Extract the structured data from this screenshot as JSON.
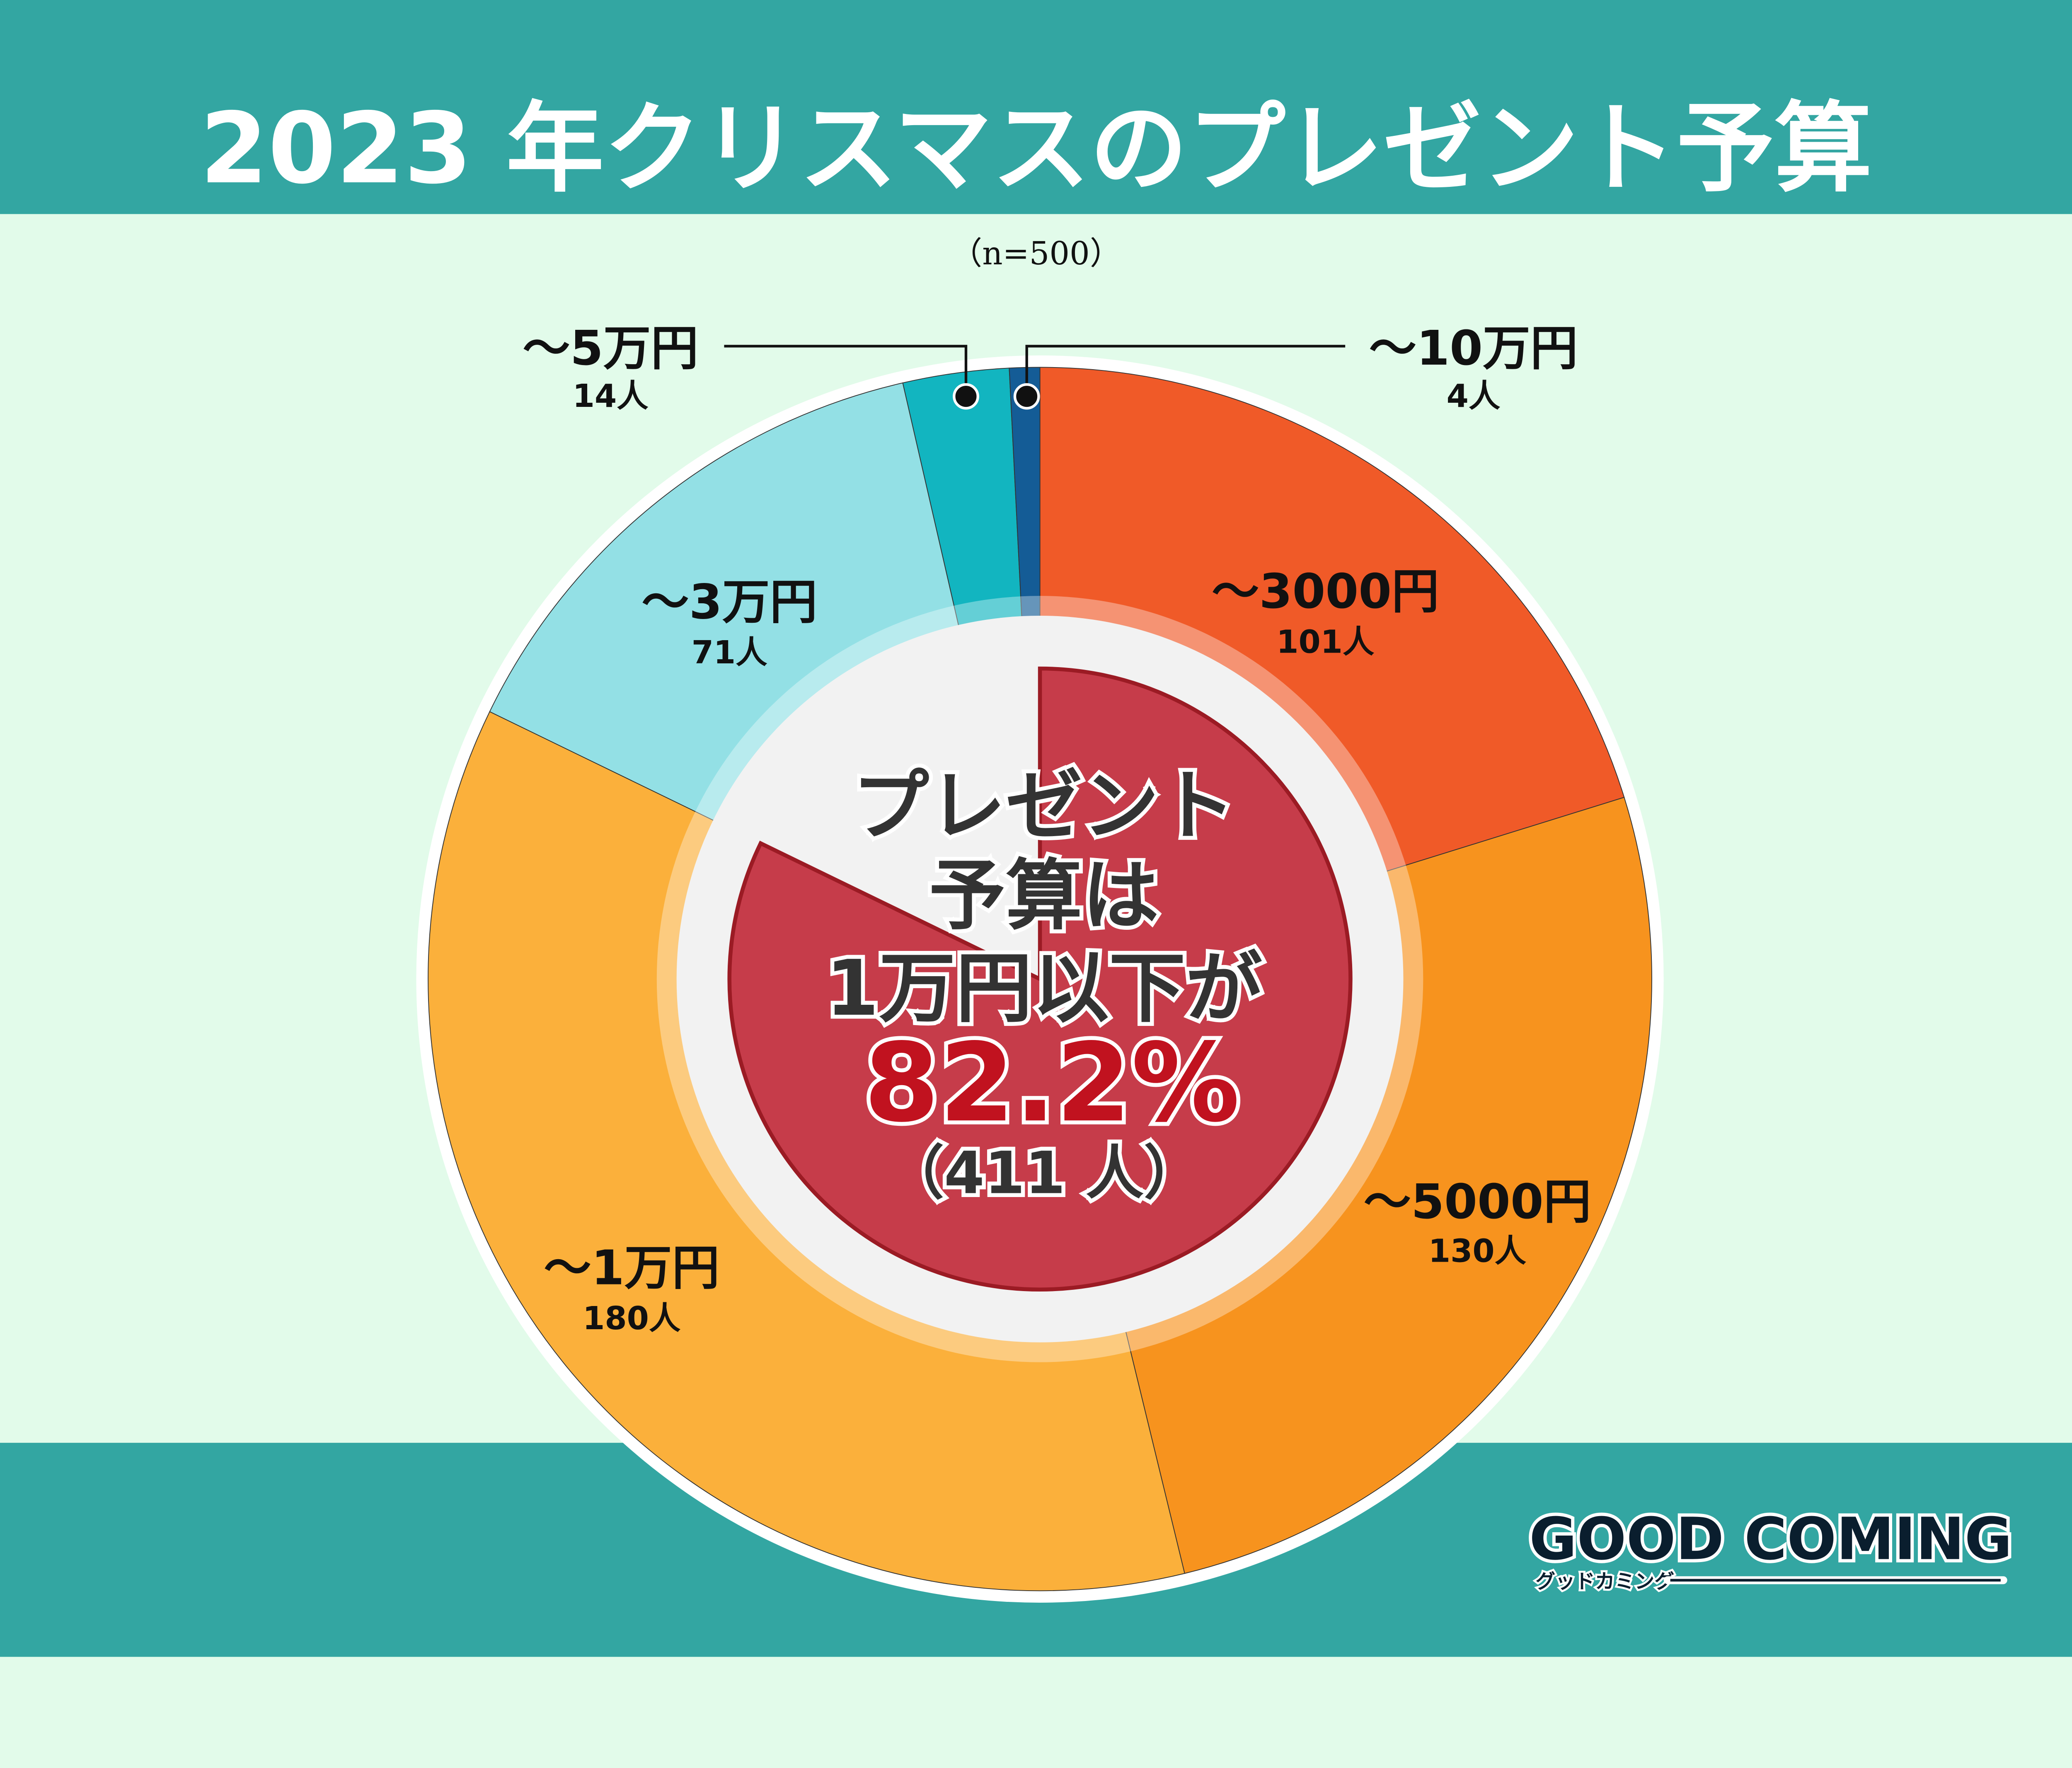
{
  "title": "2023 年クリスマスのプレゼント予算",
  "sample": "（n=500）",
  "center": {
    "line1": "プレゼント",
    "line2": "予算は",
    "line3": "1万円以下が",
    "percent": "82.2%",
    "count": "（411 人）",
    "percent_value": 82.2
  },
  "logo": {
    "main": "GOOD COMING",
    "sub": "グッドカミング"
  },
  "colors": {
    "header": "#33a6a2",
    "background": "#e2fbea",
    "highlight": "#c63c4a"
  },
  "chart_data": {
    "type": "pie",
    "variant": "donut",
    "categories": [
      "～3000円",
      "～5000円",
      "～1万円",
      "～3万円",
      "～5万円",
      "～10万円"
    ],
    "values": [
      101,
      130,
      180,
      71,
      14,
      4
    ],
    "value_labels": [
      "101人",
      "130人",
      "180人",
      "71人",
      "14人",
      "4人"
    ],
    "colors": [
      "#f05a28",
      "#f7931e",
      "#fbb03b",
      "#93e0e5",
      "#12b5c0",
      "#145c96"
    ],
    "total": 500
  }
}
